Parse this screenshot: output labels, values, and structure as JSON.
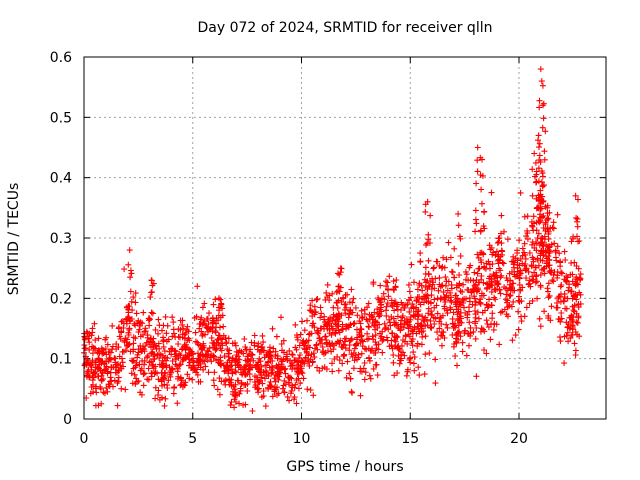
{
  "chart_data": {
    "type": "scatter",
    "title": "Day 072 of 2024, SRMTID for receiver qlln",
    "xlabel": "GPS time / hours",
    "ylabel": "SRMTID / TECUs",
    "xlim": [
      0,
      24
    ],
    "ylim": [
      0,
      0.6
    ],
    "xticks": [
      0,
      5,
      10,
      15,
      20
    ],
    "yticks": [
      0,
      0.1,
      0.2,
      0.3,
      0.4,
      0.5,
      0.6
    ],
    "xtick_labels": [
      "0",
      "5",
      "10",
      "15",
      "20"
    ],
    "ytick_labels": [
      "0",
      "0.1",
      "0.2",
      "0.3",
      "0.4",
      "0.5",
      "0.6"
    ],
    "grid": true,
    "marker": "plus",
    "color": "#ff0000",
    "trend": {
      "x": [
        0,
        0.5,
        1,
        1.5,
        2,
        2.5,
        3,
        3.5,
        4,
        4.5,
        5,
        5.5,
        6,
        6.5,
        7,
        7.5,
        8,
        8.5,
        9,
        9.5,
        10,
        10.5,
        11,
        11.5,
        12,
        12.5,
        13,
        13.5,
        14,
        14.5,
        15,
        15.5,
        16,
        16.5,
        17,
        17.5,
        18,
        18.5,
        19,
        19.5,
        20,
        20.5,
        21,
        21.5,
        22,
        22.5,
        22.9
      ],
      "y": [
        0.1,
        0.085,
        0.09,
        0.1,
        0.15,
        0.1,
        0.11,
        0.09,
        0.1,
        0.11,
        0.1,
        0.12,
        0.13,
        0.09,
        0.08,
        0.08,
        0.09,
        0.08,
        0.09,
        0.07,
        0.1,
        0.14,
        0.15,
        0.14,
        0.15,
        0.13,
        0.14,
        0.15,
        0.17,
        0.16,
        0.16,
        0.17,
        0.19,
        0.2,
        0.18,
        0.17,
        0.2,
        0.21,
        0.22,
        0.21,
        0.24,
        0.25,
        0.27,
        0.26,
        0.2,
        0.19,
        0.21
      ]
    },
    "spread": 0.035,
    "points_per_hour": 95,
    "peaks": [
      {
        "x": 2.1,
        "y": 0.28
      },
      {
        "x": 3.1,
        "y": 0.23
      },
      {
        "x": 6.2,
        "y": 0.2
      },
      {
        "x": 11.8,
        "y": 0.25
      },
      {
        "x": 15.8,
        "y": 0.36
      },
      {
        "x": 17.2,
        "y": 0.34
      },
      {
        "x": 18.1,
        "y": 0.45
      },
      {
        "x": 18.3,
        "y": 0.43
      },
      {
        "x": 19.1,
        "y": 0.3
      },
      {
        "x": 20.7,
        "y": 0.44
      },
      {
        "x": 20.9,
        "y": 0.47
      },
      {
        "x": 21.0,
        "y": 0.58
      },
      {
        "x": 21.05,
        "y": 0.56
      },
      {
        "x": 21.1,
        "y": 0.52
      },
      {
        "x": 21.3,
        "y": 0.35
      },
      {
        "x": 22.6,
        "y": 0.37
      }
    ]
  }
}
